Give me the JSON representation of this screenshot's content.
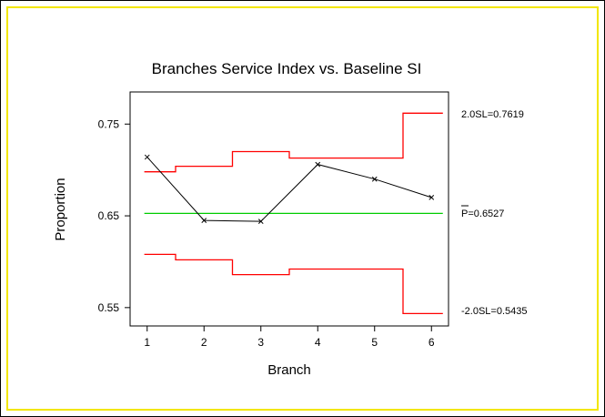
{
  "chart_data": {
    "type": "line",
    "title": "Branches Service Index vs. Baseline SI",
    "xlabel": "Branch",
    "ylabel": "Proportion",
    "x": [
      1,
      2,
      3,
      4,
      5,
      6
    ],
    "xlim": [
      0.7,
      6.3
    ],
    "ylim": [
      0.53,
      0.785
    ],
    "yticks": [
      0.55,
      0.65,
      0.75
    ],
    "ytick_labels": [
      "0.55",
      "0.65",
      "0.75"
    ],
    "xticks": [
      1,
      2,
      3,
      4,
      5,
      6
    ],
    "xtick_labels": [
      "1",
      "2",
      "3",
      "4",
      "5",
      "6"
    ],
    "grid": false,
    "series": [
      {
        "values": [
          0.714,
          0.645,
          0.644,
          0.706,
          0.69,
          0.67
        ],
        "color": "#000000",
        "marker": "x"
      }
    ],
    "upper_limit": {
      "values": [
        0.698,
        0.704,
        0.72,
        0.713,
        0.713,
        0.7619
      ],
      "label": "2.0SL=0.7619",
      "color": "#ff0000"
    },
    "lower_limit": {
      "values": [
        0.608,
        0.602,
        0.586,
        0.592,
        0.592,
        0.5435
      ],
      "label": "-2.0SL=0.5435",
      "color": "#ff0000"
    },
    "center_line": {
      "value": 0.6527,
      "label_symbol": "P",
      "label_value": "=0.6527",
      "color": "#00cc00"
    }
  }
}
